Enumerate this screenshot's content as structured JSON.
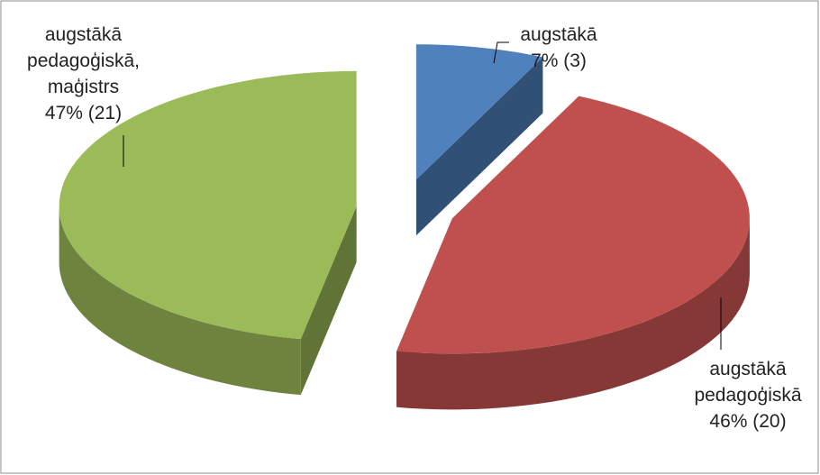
{
  "chart_data": {
    "type": "pie3d",
    "categories": [
      "augstākā",
      "augstākā pedagoģiskā",
      "augstākā pedagoģiskā, maģistrs"
    ],
    "values": [
      7,
      46,
      47
    ],
    "value_labels": [
      "7% (3)",
      "46% (20)",
      "47% (21)"
    ],
    "colors": [
      "#4f81bd",
      "#c0504d",
      "#9bbb59"
    ],
    "exploded": true
  }
}
